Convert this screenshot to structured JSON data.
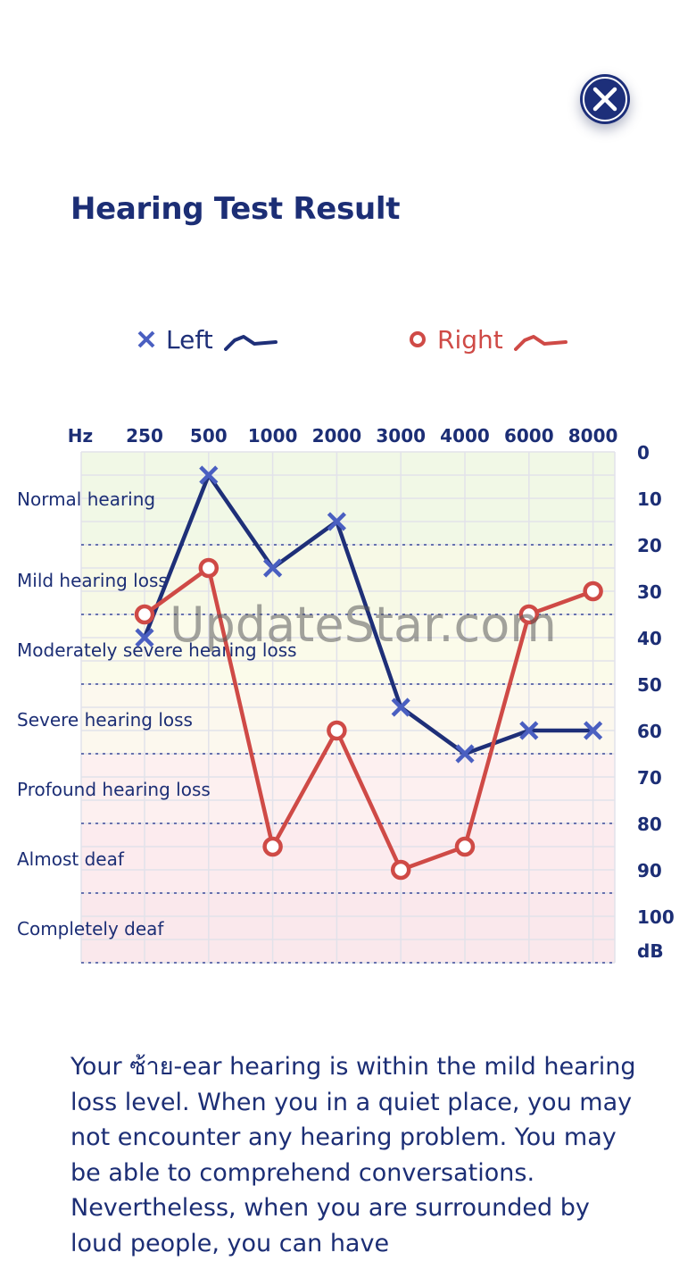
{
  "title": "Hearing Test Result",
  "close_button": {
    "icon": "close-icon"
  },
  "legend": {
    "left": {
      "label": "Left",
      "marker": "x-icon",
      "color": "#1e2f78",
      "marker_color": "#4a5fc1"
    },
    "right": {
      "label": "Right",
      "marker": "circle-icon",
      "color": "#cf4a46"
    }
  },
  "chart_data": {
    "type": "line",
    "x_label": "Hz",
    "y_unit": "dB",
    "categories": [
      "250",
      "500",
      "1000",
      "2000",
      "3000",
      "4000",
      "6000",
      "8000"
    ],
    "y_ticks": [
      "0",
      "10",
      "20",
      "30",
      "40",
      "50",
      "60",
      "70",
      "80",
      "90",
      "100"
    ],
    "ylim": [
      0,
      110
    ],
    "y_inverted": true,
    "series": [
      {
        "name": "Left",
        "values": [
          40,
          5,
          25,
          15,
          55,
          65,
          60,
          60
        ]
      },
      {
        "name": "Right",
        "values": [
          35,
          25,
          85,
          60,
          90,
          85,
          35,
          30
        ]
      }
    ],
    "bands": [
      {
        "label": "Normal hearing",
        "from": 0,
        "to": 20,
        "color": "#f1f8e6"
      },
      {
        "label": "Mild hearing loss",
        "from": 20,
        "to": 35,
        "color": "#f7f9e6"
      },
      {
        "label": "Moderately severe hearing loss",
        "from": 35,
        "to": 50,
        "color": "#fbfbea"
      },
      {
        "label": "Severe hearing loss",
        "from": 50,
        "to": 65,
        "color": "#fcf8ee"
      },
      {
        "label": "Profound hearing loss",
        "from": 65,
        "to": 80,
        "color": "#fdf0f0"
      },
      {
        "label": "Almost deaf",
        "from": 80,
        "to": 95,
        "color": "#fcebee"
      },
      {
        "label": "Completely deaf",
        "from": 95,
        "to": 110,
        "color": "#fae8ec"
      }
    ]
  },
  "watermark": "UpdateStar.com",
  "description": "Your ซ้าย-ear hearing is within the mild hearing loss level. When you in a quiet place, you may not encounter any hearing problem. You may be able to comprehend conversations. Nevertheless, when you are surrounded by loud people, you can have"
}
